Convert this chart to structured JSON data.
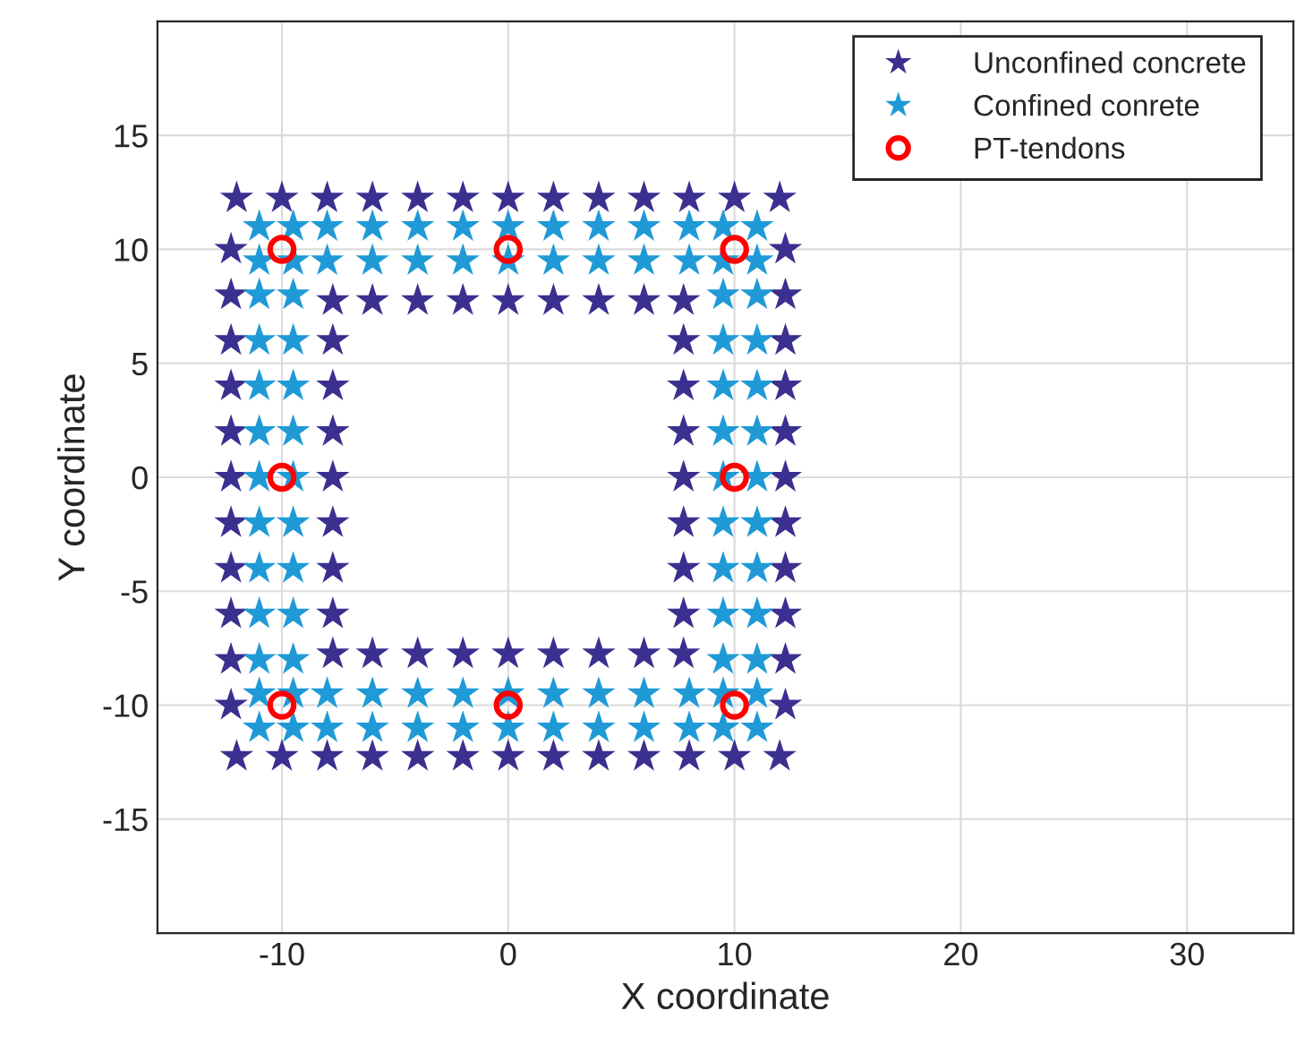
{
  "chart_data": {
    "type": "scatter",
    "xlabel": "X coordinate",
    "ylabel": "Y coordinate",
    "xlim": [
      -15.5,
      34.7
    ],
    "ylim": [
      -20,
      20
    ],
    "xticks": [
      -10,
      0,
      10,
      20,
      30
    ],
    "yticks": [
      -15,
      -10,
      -5,
      0,
      5,
      10,
      15
    ],
    "grid": true,
    "legend": "top right",
    "series": [
      {
        "name": "Unconfined concrete",
        "color": "#3b2f8f",
        "marker": "star",
        "x": [
          -12,
          -10,
          -8,
          -6,
          -4,
          -2,
          0,
          2,
          4,
          6,
          8,
          10,
          12,
          -12,
          -10,
          -8,
          -6,
          -4,
          -2,
          0,
          2,
          4,
          6,
          8,
          10,
          12,
          -12.25,
          -12.25,
          -12.25,
          -12.25,
          -12.25,
          -12.25,
          -12.25,
          -12.25,
          -12.25,
          -12.25,
          -12.25,
          12.25,
          12.25,
          12.25,
          12.25,
          12.25,
          12.25,
          12.25,
          12.25,
          12.25,
          12.25,
          12.25,
          -7.75,
          -6,
          -4,
          -2,
          0,
          2,
          4,
          6,
          7.75,
          -7.75,
          -6,
          -4,
          -2,
          0,
          2,
          4,
          6,
          7.75,
          -7.75,
          -7.75,
          -7.75,
          -7.75,
          -7.75,
          -7.75,
          -7.75,
          7.75,
          7.75,
          7.75,
          7.75,
          7.75,
          7.75,
          7.75
        ],
        "values": [
          12.25,
          12.25,
          12.25,
          12.25,
          12.25,
          12.25,
          12.25,
          12.25,
          12.25,
          12.25,
          12.25,
          12.25,
          12.25,
          -12.25,
          -12.25,
          -12.25,
          -12.25,
          -12.25,
          -12.25,
          -12.25,
          -12.25,
          -12.25,
          -12.25,
          -12.25,
          -12.25,
          -12.25,
          -10,
          -8,
          -6,
          -4,
          -2,
          0,
          2,
          4,
          6,
          8,
          10,
          -10,
          -8,
          -6,
          -4,
          -2,
          0,
          2,
          4,
          6,
          8,
          10,
          7.75,
          7.75,
          7.75,
          7.75,
          7.75,
          7.75,
          7.75,
          7.75,
          7.75,
          -7.75,
          -7.75,
          -7.75,
          -7.75,
          -7.75,
          -7.75,
          -7.75,
          -7.75,
          -7.75,
          -6,
          -4,
          -2,
          0,
          2,
          4,
          6,
          -6,
          -4,
          -2,
          0,
          2,
          4,
          6
        ]
      },
      {
        "name": "Confined conrete",
        "color": "#1f9ad6",
        "marker": "star",
        "x": [
          -11,
          -9.5,
          -8,
          -6,
          -4,
          -2,
          0,
          2,
          4,
          6,
          8,
          9.5,
          11,
          -11,
          -9.5,
          -8,
          -6,
          -4,
          -2,
          0,
          2,
          4,
          6,
          8,
          9.5,
          11,
          -11,
          -9.5,
          -8,
          -6,
          -4,
          -2,
          0,
          2,
          4,
          6,
          8,
          9.5,
          11,
          -11,
          -9.5,
          -8,
          -6,
          -4,
          -2,
          0,
          2,
          4,
          6,
          8,
          9.5,
          11,
          -11,
          -11,
          -11,
          -11,
          -11,
          -11,
          -11,
          -11,
          -11,
          -9.5,
          -9.5,
          -9.5,
          -9.5,
          -9.5,
          -9.5,
          -9.5,
          -9.5,
          -9.5,
          9.5,
          9.5,
          9.5,
          9.5,
          9.5,
          9.5,
          9.5,
          9.5,
          9.5,
          11,
          11,
          11,
          11,
          11,
          11,
          11,
          11,
          11
        ],
        "values": [
          -11,
          -11,
          -11,
          -11,
          -11,
          -11,
          -11,
          -11,
          -11,
          -11,
          -11,
          -11,
          -11,
          -9.5,
          -9.5,
          -9.5,
          -9.5,
          -9.5,
          -9.5,
          -9.5,
          -9.5,
          -9.5,
          -9.5,
          -9.5,
          -9.5,
          -9.5,
          9.5,
          9.5,
          9.5,
          9.5,
          9.5,
          9.5,
          9.5,
          9.5,
          9.5,
          9.5,
          9.5,
          9.5,
          9.5,
          11,
          11,
          11,
          11,
          11,
          11,
          11,
          11,
          11,
          11,
          11,
          11,
          11,
          -8,
          -6,
          -4,
          -2,
          0,
          2,
          4,
          6,
          8,
          -8,
          -6,
          -4,
          -2,
          0,
          2,
          4,
          6,
          8,
          -8,
          -6,
          -4,
          -2,
          0,
          2,
          4,
          6,
          8,
          -8,
          -6,
          -4,
          -2,
          0,
          2,
          4,
          6,
          8
        ]
      },
      {
        "name": "PT-tendons",
        "color": "#ff0000",
        "marker": "circle",
        "x": [
          -10,
          0,
          10,
          -10,
          10,
          -10,
          0,
          10
        ],
        "values": [
          10,
          10,
          10,
          0,
          0,
          -10,
          -10,
          -10
        ]
      }
    ]
  }
}
